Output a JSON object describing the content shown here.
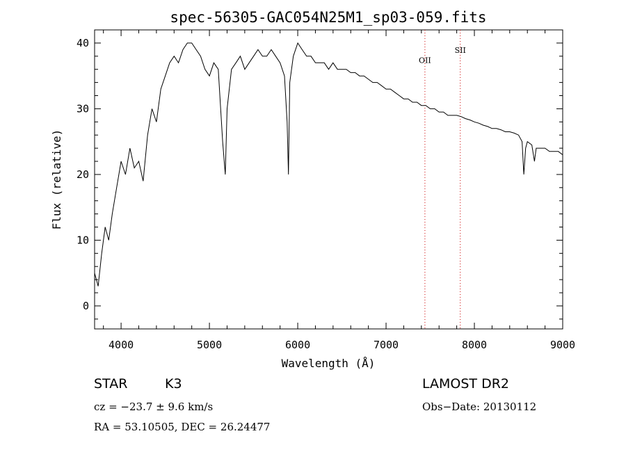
{
  "chart_data": {
    "type": "line",
    "title": "spec-56305-GAC054N25M1_sp03-059.fits",
    "xlabel": "Wavelength (Å)",
    "ylabel": "Flux (relative)",
    "xlim": [
      3700,
      9000
    ],
    "ylim": [
      -3.5,
      42
    ],
    "xticks": [
      4000,
      5000,
      6000,
      7000,
      8000,
      9000
    ],
    "yticks": [
      0,
      10,
      20,
      30,
      40
    ],
    "grid": false,
    "line_color": "#000000",
    "marker_color": "#cc0000",
    "series": [
      {
        "x": [
          3700,
          3740,
          3780,
          3820,
          3860,
          3900,
          3950,
          4000,
          4050,
          4100,
          4150,
          4200,
          4250,
          4300,
          4350,
          4400,
          4450,
          4500,
          4550,
          4600,
          4650,
          4700,
          4750,
          4800,
          4850,
          4900,
          4950,
          5000,
          5050,
          5100,
          5150,
          5180,
          5200,
          5250,
          5300,
          5350,
          5400,
          5450,
          5500,
          5550,
          5600,
          5650,
          5700,
          5750,
          5800,
          5850,
          5880,
          5895,
          5910,
          5950,
          6000,
          6050,
          6100,
          6150,
          6200,
          6250,
          6300,
          6350,
          6400,
          6450,
          6500,
          6550,
          6600,
          6650,
          6700,
          6750,
          6800,
          6850,
          6900,
          6950,
          7000,
          7050,
          7100,
          7150,
          7200,
          7250,
          7300,
          7350,
          7400,
          7450,
          7500,
          7550,
          7600,
          7650,
          7700,
          7750,
          7800,
          7850,
          7900,
          7950,
          8000,
          8050,
          8100,
          8150,
          8200,
          8250,
          8300,
          8350,
          8400,
          8450,
          8500,
          8540,
          8560,
          8580,
          8600,
          8650,
          8680,
          8700,
          8750,
          8800,
          8850,
          8900,
          8950,
          9000
        ],
        "y": [
          5,
          3,
          8,
          12,
          10,
          14,
          18,
          22,
          20,
          24,
          21,
          22,
          19,
          26,
          30,
          28,
          33,
          35,
          37,
          38,
          37,
          39,
          40,
          40,
          39,
          38,
          36,
          35,
          37,
          36,
          25,
          20,
          30,
          36,
          37,
          38,
          36,
          37,
          38,
          39,
          38,
          38,
          39,
          38,
          37,
          35,
          28,
          20,
          34,
          38,
          40,
          39,
          38,
          38,
          37,
          37,
          37,
          36,
          37,
          36,
          36,
          36,
          35.5,
          35.5,
          35,
          35,
          34.5,
          34,
          34,
          33.5,
          33,
          33,
          32.5,
          32,
          31.5,
          31.5,
          31,
          31,
          30.5,
          30.5,
          30,
          30,
          29.5,
          29.5,
          29,
          29,
          29,
          28.8,
          28.5,
          28.3,
          28,
          27.8,
          27.5,
          27.3,
          27,
          27,
          26.8,
          26.5,
          26.5,
          26.3,
          26,
          25,
          20,
          24,
          25,
          24.5,
          22,
          24,
          24,
          24,
          23.5,
          23.5,
          23.5,
          23
        ]
      }
    ],
    "annotations": [
      {
        "label": "OII",
        "x": 7440,
        "y": 37
      },
      {
        "label": "SII",
        "x": 7840,
        "y": 38.5
      }
    ]
  },
  "info": {
    "object_class": "STAR",
    "subclass": "K3",
    "survey": "LAMOST DR2",
    "cz": "cz = −23.7 ± 9.6 km/s",
    "obs_date": "Obs−Date: 20130112",
    "coords": "RA =  53.10505, DEC =  26.24477"
  }
}
